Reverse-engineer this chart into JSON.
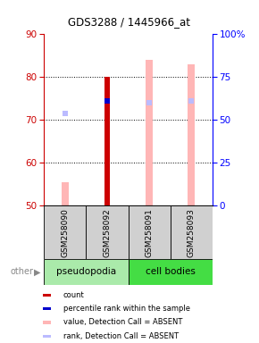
{
  "title": "GDS3288 / 1445966_at",
  "samples": [
    "GSM258090",
    "GSM258092",
    "GSM258091",
    "GSM258093"
  ],
  "ylim": [
    50,
    90
  ],
  "y2lim": [
    0,
    100
  ],
  "yticks": [
    50,
    60,
    70,
    80,
    90
  ],
  "y2ticks": [
    0,
    25,
    50,
    75,
    100
  ],
  "count_values": [
    null,
    80.0,
    null,
    null
  ],
  "rank_values": [
    null,
    74.5,
    null,
    null
  ],
  "value_absent": [
    55.5,
    null,
    84.0,
    83.0
  ],
  "rank_absent": [
    71.5,
    null,
    74.0,
    74.5
  ],
  "count_color": "#CC0000",
  "rank_color": "#0000CC",
  "value_absent_color": "#FFB6B6",
  "rank_absent_color": "#BBBBFF",
  "ylabel_color": "#CC0000",
  "y2label_color": "#0000FF",
  "grid_color": "black",
  "sample_bg": "#D0D0D0",
  "pseudo_color": "#AAEAAA",
  "cell_color": "#44DD44",
  "legend_items": [
    {
      "color": "#CC0000",
      "label": "count"
    },
    {
      "color": "#0000CC",
      "label": "percentile rank within the sample"
    },
    {
      "color": "#FFB6B6",
      "label": "value, Detection Call = ABSENT"
    },
    {
      "color": "#BBBBFF",
      "label": "rank, Detection Call = ABSENT"
    }
  ]
}
